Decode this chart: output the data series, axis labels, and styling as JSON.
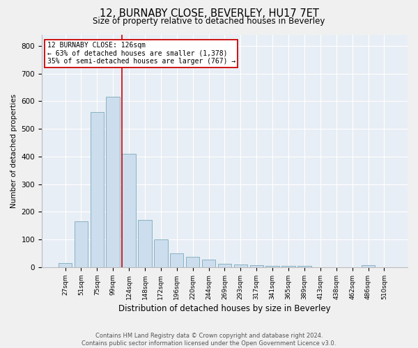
{
  "title": "12, BURNABY CLOSE, BEVERLEY, HU17 7ET",
  "subtitle": "Size of property relative to detached houses in Beverley",
  "xlabel": "Distribution of detached houses by size in Beverley",
  "ylabel": "Number of detached properties",
  "footer": "Contains HM Land Registry data © Crown copyright and database right 2024.\nContains public sector information licensed under the Open Government Licence v3.0.",
  "bar_labels": [
    "27sqm",
    "51sqm",
    "75sqm",
    "99sqm",
    "124sqm",
    "148sqm",
    "172sqm",
    "196sqm",
    "220sqm",
    "244sqm",
    "269sqm",
    "293sqm",
    "317sqm",
    "341sqm",
    "365sqm",
    "389sqm",
    "413sqm",
    "438sqm",
    "462sqm",
    "486sqm",
    "510sqm"
  ],
  "bar_values": [
    15,
    165,
    560,
    615,
    410,
    170,
    100,
    50,
    38,
    28,
    12,
    11,
    8,
    5,
    4,
    5,
    0,
    0,
    0,
    7,
    0
  ],
  "bar_color": "#ccdded",
  "bar_edge_color": "#7aaabb",
  "highlight_line_index": 4,
  "highlight_line_color": "#cc0000",
  "annotation_line1": "12 BURNABY CLOSE: 126sqm",
  "annotation_line2": "← 63% of detached houses are smaller (1,378)",
  "annotation_line3": "35% of semi-detached houses are larger (767) →",
  "annotation_box_facecolor": "#ffffff",
  "annotation_box_edgecolor": "#cc0000",
  "ylim": [
    0,
    840
  ],
  "yticks": [
    0,
    100,
    200,
    300,
    400,
    500,
    600,
    700,
    800
  ],
  "fig_facecolor": "#f0f0f0",
  "axes_facecolor": "#e8eef5",
  "grid_color": "#ffffff",
  "title_fontsize": 10.5,
  "subtitle_fontsize": 8.5,
  "xlabel_fontsize": 8.5,
  "ylabel_fontsize": 7.5,
  "xtick_fontsize": 6.5,
  "ytick_fontsize": 7.5,
  "annotation_fontsize": 7.0,
  "footer_fontsize": 6.0
}
